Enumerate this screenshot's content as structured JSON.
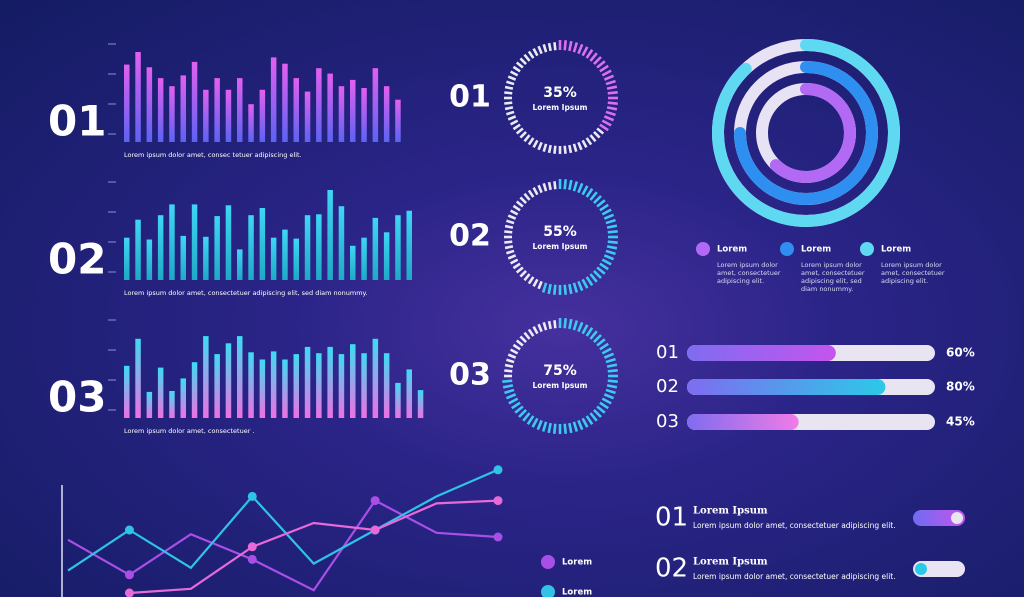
{
  "chart_data": [
    {
      "type": "bar",
      "label": "01",
      "caption": "Lorem ipsum dolor amet, consec tetuer adipiscing elit.",
      "colors": [
        "#e35ff0",
        "#5b63f2"
      ],
      "label_color": "#8b93f5",
      "ylim": [
        0,
        100
      ],
      "values": [
        86,
        100,
        83,
        71,
        62,
        74,
        89,
        58,
        71,
        58,
        71,
        42,
        58,
        94,
        87,
        71,
        56,
        82,
        76,
        62,
        69,
        60,
        82,
        62,
        47
      ]
    },
    {
      "type": "bar",
      "label": "02",
      "caption": "Lorem ipsum dolor amet, consectetuer adipiscing elit, sed diam nonummy.",
      "colors": [
        "#3fd6f5",
        "#1fa9c6"
      ],
      "label_color": "#37d3e2",
      "ylim": [
        0,
        100
      ],
      "values": [
        47,
        67,
        45,
        72,
        84,
        49,
        84,
        48,
        71,
        83,
        34,
        72,
        80,
        47,
        56,
        46,
        72,
        73,
        100,
        82,
        38,
        47,
        69,
        53,
        72,
        77
      ]
    },
    {
      "type": "bar",
      "label": "03",
      "caption": "Lorem ipsum dolor amet, consectetuer .",
      "colors": [
        "#3ddcf2",
        "#f06fe3"
      ],
      "label_color": "#f28ae9",
      "ylim": [
        0,
        100
      ],
      "values": [
        58,
        88,
        29,
        56,
        30,
        44,
        62,
        91,
        71,
        83,
        91,
        73,
        65,
        74,
        65,
        71,
        79,
        72,
        79,
        71,
        82,
        72,
        88,
        72,
        39,
        54,
        31
      ]
    },
    {
      "type": "gauge",
      "categories": [
        "01",
        "02",
        "03"
      ],
      "values": [
        35,
        55,
        75
      ],
      "value_labels": [
        "35%",
        "55%",
        "75%"
      ],
      "center_text": "Lorem Ipsum",
      "colors": [
        "#d970f0",
        "#3fc8f0",
        "#3fc8f0"
      ],
      "label_colors": [
        "#8b93f5",
        "#37d3e2",
        "#f28ae9"
      ],
      "ylim": [
        0,
        100
      ]
    },
    {
      "type": "ring",
      "ylim": [
        0,
        100
      ],
      "series": [
        {
          "name": "Lorem",
          "color": "#b26af5",
          "values": [
            62
          ],
          "text": "Lorem ipsum dolor amet, consectetuer adipiscing elit."
        },
        {
          "name": "Lorem",
          "color": "#2f8ff0",
          "values": [
            75
          ],
          "text": "Lorem ipsum dolor amet, consectetuer adipiscing elit, sed diam nonummy."
        },
        {
          "name": "Lorem",
          "color": "#5fd9f2",
          "values": [
            88
          ],
          "text": "Lorem ipsum dolor amet, consectetuer adipiscing elit."
        }
      ]
    },
    {
      "type": "progress",
      "categories": [
        "01",
        "02",
        "03"
      ],
      "values": [
        60,
        80,
        45
      ],
      "value_labels": [
        "60%",
        "80%",
        "45%"
      ],
      "ylim": [
        0,
        100
      ],
      "colors": [
        "#c455ee",
        "#2bc9e8",
        "#f07ce6"
      ],
      "label_colors": [
        "#8b93f5",
        "#37d3e2",
        "#f28ae9"
      ]
    },
    {
      "type": "line",
      "ylim": [
        0,
        100
      ],
      "categories": [
        null,
        null,
        null,
        null,
        null,
        null,
        null,
        null
      ],
      "series": [
        {
          "name": "Lorem",
          "color": "#a94fe8",
          "values": [
            43,
            18,
            47,
            29,
            7,
            71,
            48,
            45
          ]
        },
        {
          "name": "Lorem",
          "color": "#2fc4e6",
          "values": [
            21,
            50,
            23,
            74,
            26,
            50,
            74,
            93
          ]
        },
        {
          "color": "#e86ad9",
          "values": [
            null,
            5,
            8,
            38,
            55,
            50,
            69,
            71
          ]
        }
      ]
    }
  ],
  "list": [
    {
      "number": "01",
      "title": "Lorem Ipsum",
      "text": "Lorem ipsum dolor amet, consectetuer adipiscing elit."
    },
    {
      "number": "02",
      "title": "Lorem Ipsum",
      "text": "Lorem ipsum dolor amet, consectetuer adipiscing elit."
    }
  ]
}
